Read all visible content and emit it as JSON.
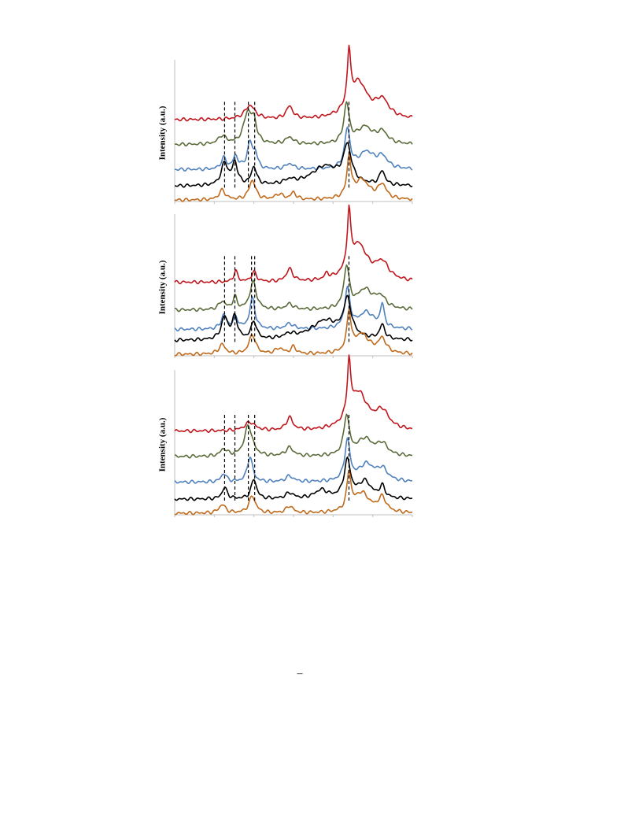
{
  "page_number": "–",
  "chart_data": [
    {
      "type": "line",
      "title": "",
      "ylabel": "Intensity (a.u.)",
      "xlabel": "",
      "xlim": [
        0,
        300
      ],
      "ylim": [
        0,
        100
      ],
      "grid": false,
      "legend": "none",
      "reference_lines_x": [
        63,
        76,
        93,
        101,
        220
      ],
      "series": [
        {
          "color": "#c0161e",
          "offset": 58,
          "peaks": [
            [
              95,
              10,
              8
            ],
            [
              145,
              9,
              5
            ],
            [
              220,
              38,
              2.5
            ],
            [
              232,
              26,
              14
            ],
            [
              262,
              12,
              10
            ]
          ]
        },
        {
          "color": "#5a6b3a",
          "offset": 40,
          "peaks": [
            [
              60,
              6,
              6
            ],
            [
              92,
              22,
              6
            ],
            [
              100,
              14,
              4
            ],
            [
              145,
              5,
              6
            ],
            [
              217,
              28,
              4
            ],
            [
              240,
              12,
              12
            ],
            [
              262,
              8,
              8
            ]
          ]
        },
        {
          "color": "#4f81bd",
          "offset": 22,
          "peaks": [
            [
              62,
              8,
              4
            ],
            [
              77,
              9,
              4
            ],
            [
              95,
              19,
              4
            ],
            [
              102,
              10,
              3
            ],
            [
              145,
              4,
              6
            ],
            [
              218,
              28,
              4
            ],
            [
              242,
              12,
              12
            ],
            [
              262,
              8,
              8
            ]
          ]
        },
        {
          "color": "#000000",
          "offset": 10,
          "peaks": [
            [
              63,
              16,
              5
            ],
            [
              76,
              16,
              4
            ],
            [
              100,
              13,
              4
            ],
            [
              145,
              3,
              8
            ],
            [
              190,
              14,
              22
            ],
            [
              218,
              26,
              6
            ],
            [
              262,
              10,
              4
            ]
          ]
        },
        {
          "color": "#c06a1b",
          "offset": 0,
          "peaks": [
            [
              60,
              7,
              5
            ],
            [
              98,
              14,
              5
            ],
            [
              132,
              4,
              6
            ],
            [
              150,
              5,
              4
            ],
            [
              220,
              28,
              3
            ],
            [
              236,
              14,
              12
            ],
            [
              262,
              10,
              6
            ]
          ]
        }
      ]
    },
    {
      "type": "line",
      "title": "",
      "ylabel": "Intensity (a.u.)",
      "xlabel": "",
      "xlim": [
        0,
        300
      ],
      "ylim": [
        0,
        100
      ],
      "grid": false,
      "legend": "none",
      "reference_lines_x": [
        63,
        76,
        97,
        101,
        220
      ],
      "series": [
        {
          "color": "#c0161e",
          "offset": 52,
          "peaks": [
            [
              77,
              8,
              3
            ],
            [
              100,
              7,
              4
            ],
            [
              145,
              9,
              5
            ],
            [
              192,
              4,
              3
            ],
            [
              220,
              40,
              2.5
            ],
            [
              232,
              26,
              14
            ],
            [
              262,
              12,
              10
            ]
          ]
        },
        {
          "color": "#5a6b3a",
          "offset": 32,
          "peaks": [
            [
              60,
              6,
              5
            ],
            [
              76,
              9,
              3
            ],
            [
              99,
              20,
              5
            ],
            [
              145,
              4,
              6
            ],
            [
              217,
              30,
              4
            ],
            [
              240,
              14,
              12
            ],
            [
              260,
              8,
              8
            ]
          ]
        },
        {
          "color": "#4f81bd",
          "offset": 18,
          "peaks": [
            [
              62,
              10,
              4
            ],
            [
              77,
              8,
              4
            ],
            [
              98,
              22,
              4
            ],
            [
              145,
              4,
              6
            ],
            [
              218,
              28,
              4
            ],
            [
              242,
              12,
              12
            ],
            [
              262,
              16,
              3
            ]
          ]
        },
        {
          "color": "#000000",
          "offset": 10,
          "peaks": [
            [
              63,
              16,
              5
            ],
            [
              76,
              16,
              4
            ],
            [
              100,
              13,
              4
            ],
            [
              145,
              3,
              8
            ],
            [
              190,
              14,
              22
            ],
            [
              218,
              26,
              6
            ],
            [
              262,
              10,
              4
            ]
          ]
        },
        {
          "color": "#c06a1b",
          "offset": 0,
          "peaks": [
            [
              60,
              7,
              5
            ],
            [
              98,
              14,
              5
            ],
            [
              132,
              4,
              6
            ],
            [
              150,
              5,
              4
            ],
            [
              220,
              28,
              3
            ],
            [
              236,
              14,
              12
            ],
            [
              262,
              10,
              6
            ]
          ]
        }
      ]
    },
    {
      "type": "line",
      "title": "",
      "ylabel": "Intensity (a.u.)",
      "xlabel": "",
      "xlim": [
        0,
        300
      ],
      "ylim": [
        0,
        100
      ],
      "grid": false,
      "legend": "none",
      "reference_lines_x": [
        63,
        76,
        93,
        101,
        220
      ],
      "series": [
        {
          "color": "#c0161e",
          "offset": 58,
          "peaks": [
            [
              95,
              6,
              8
            ],
            [
              145,
              9,
              5
            ],
            [
              220,
              38,
              2.5
            ],
            [
              232,
              26,
              14
            ],
            [
              262,
              12,
              10
            ]
          ]
        },
        {
          "color": "#5a6b3a",
          "offset": 40,
          "peaks": [
            [
              62,
              5,
              5
            ],
            [
              93,
              22,
              6
            ],
            [
              145,
              6,
              6
            ],
            [
              217,
              28,
              4
            ],
            [
              240,
              12,
              12
            ],
            [
              262,
              8,
              8
            ]
          ]
        },
        {
          "color": "#4f81bd",
          "offset": 22,
          "peaks": [
            [
              62,
              6,
              4
            ],
            [
              95,
              18,
              4
            ],
            [
              145,
              4,
              6
            ],
            [
              218,
              28,
              4
            ],
            [
              242,
              12,
              12
            ],
            [
              262,
              8,
              8
            ]
          ]
        },
        {
          "color": "#000000",
          "offset": 10,
          "peaks": [
            [
              63,
              8,
              4
            ],
            [
              100,
              14,
              4
            ],
            [
              145,
              4,
              6
            ],
            [
              185,
              6,
              10
            ],
            [
              218,
              26,
              5
            ],
            [
              240,
              12,
              10
            ],
            [
              262,
              8,
              4
            ]
          ]
        },
        {
          "color": "#c06a1b",
          "offset": 0,
          "peaks": [
            [
              60,
              6,
              5
            ],
            [
              98,
              12,
              5
            ],
            [
              145,
              5,
              5
            ],
            [
              220,
              26,
              3
            ],
            [
              236,
              14,
              12
            ],
            [
              262,
              10,
              6
            ]
          ]
        }
      ]
    }
  ]
}
